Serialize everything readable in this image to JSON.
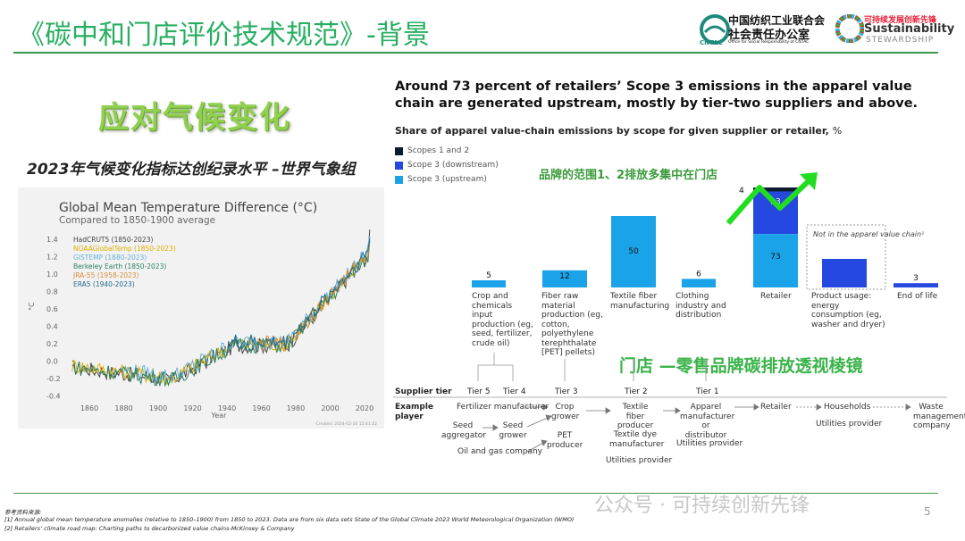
{
  "slide": {
    "title": "《碳中和门店评价技术规范》-背景",
    "subtitle": "应对气候变化",
    "wmo_line": "2023年气候变化指标达创纪录水平 –世界气象组",
    "page_number": "5",
    "watermark": "公众号 · 可持续创新先锋"
  },
  "logos": {
    "cntac_cn": "中国纺织工业联合会",
    "cntac_cn2": "社会责任办公室",
    "cntac_short": "CNTAC",
    "cntac_en": "Office for Social Responsibility of CNTAC",
    "sus_cn": "可持续发展创新先锋",
    "sus_en1": "Sustainability",
    "sus_en2": "STEWARDSHIP"
  },
  "temp_chart": {
    "title": "Global Mean Temperature Difference (°C)",
    "subtitle": "Compared to 1850-1900 average",
    "ylabel": "°C",
    "xlabel": "Year",
    "credit": "Created: 2024-02-16 15:41:22",
    "y_ticks": [
      "1.4",
      "1.2",
      "1.0",
      "0.8",
      "0.6",
      "0.4",
      "0.2",
      "0.0",
      "-0.2",
      "-0.4"
    ],
    "x_ticks": [
      "1860",
      "1880",
      "1900",
      "1920",
      "1940",
      "1960",
      "1980",
      "2000",
      "2020"
    ],
    "legend": [
      {
        "name": "HadCRUT5 (1850-2023)",
        "color": "#444444"
      },
      {
        "name": "NOAAGlobalTemp (1850-2023)",
        "color": "#e0b000"
      },
      {
        "name": "GISTEMP (1880-2023)",
        "color": "#66b3d6"
      },
      {
        "name": "Berkeley Earth (1850-2023)",
        "color": "#2a7f62"
      },
      {
        "name": "JRA-55 (1958-2023)",
        "color": "#d98c3a"
      },
      {
        "name": "ERA5 (1940-2023)",
        "color": "#1f6b8c"
      }
    ]
  },
  "chart_data": {
    "type": "bar",
    "title": "Around 73 percent of retailers’ Scope 3 emissions in the apparel value chain are generated upstream, mostly by tier-two suppliers and above.",
    "subtitle": "Share of apparel value-chain emissions by scope for given supplier or retailer,",
    "unit": "%",
    "legend": [
      {
        "name": "Scopes 1 and 2",
        "color": "#0b1a2e"
      },
      {
        "name": "Scope 3 (downstream)",
        "color": "#2448e0"
      },
      {
        "name": "Scope 3 (upstream)",
        "color": "#1aa3e8"
      }
    ],
    "categories": [
      "Crop and chemicals input production (eg, seed, fertilizer, crude oil)",
      "Fiber raw material production (eg, cotton, polyethylene terephthalate [PET] pellets)",
      "Textile fiber manufacturing",
      "Clothing industry and distribution",
      "Retailer",
      "Product usage: energy consumption (eg, washer and dryer)",
      "End of life"
    ],
    "series": [
      {
        "name": "Scopes 1 and 2",
        "values": [
          0,
          0,
          0,
          0,
          4,
          0,
          0
        ]
      },
      {
        "name": "Scope 3 (downstream)",
        "values": [
          0,
          0,
          0,
          0,
          23,
          20,
          3
        ]
      },
      {
        "name": "Scope 3 (upstream)",
        "values": [
          5,
          12,
          50,
          6,
          73,
          0,
          0
        ]
      }
    ],
    "labels": [
      "5",
      "12",
      "50",
      "6",
      "73",
      "20",
      "3"
    ],
    "top_labels": {
      "retailer_s12": "4",
      "retailer_down": "23"
    },
    "note": "Not in the apparel value chain¹"
  },
  "overlays": {
    "store_scope": "品牌的范围1、2排放多集中在门店",
    "store_lens": "门店 —零售品牌碳排放透视棱镜"
  },
  "tiers": {
    "row_label": "Supplier tier",
    "player_label": "Example player",
    "names": [
      "Tier 5",
      "Tier 4",
      "Tier 3",
      "Tier 2",
      "Tier 1"
    ],
    "players": {
      "fertilizer": "Fertilizer manufacturer",
      "seed_agg": "Seed aggregator",
      "seed_grower": "Seed grower",
      "oil_gas": "Oil and gas company",
      "crop_grower": "Crop grower",
      "pet_producer": "PET producer",
      "textile_fiber": "Textile fiber producer",
      "textile_dye": "Textile dye manufacturer",
      "utilities1": "Utilities provider",
      "apparel_mfr": "Apparel manufacturer or distributor",
      "utilities2": "Utilities provider",
      "retailer": "Retailer",
      "households": "Households",
      "utilities3": "Utilities provider",
      "waste": "Waste management company"
    }
  },
  "footnotes": {
    "label": "参考资料来源:",
    "f1": "[1] Annual global mean temperature anomalies (relative to 1850–1900) from 1850 to 2023. Data are from six data sets  State of the Global Climate 2023 World Meteorological Organization (WMO)",
    "f2": "[2] Retailers’   climate road map: Charting paths to decarbonized value chains-McKinsey & Company"
  }
}
